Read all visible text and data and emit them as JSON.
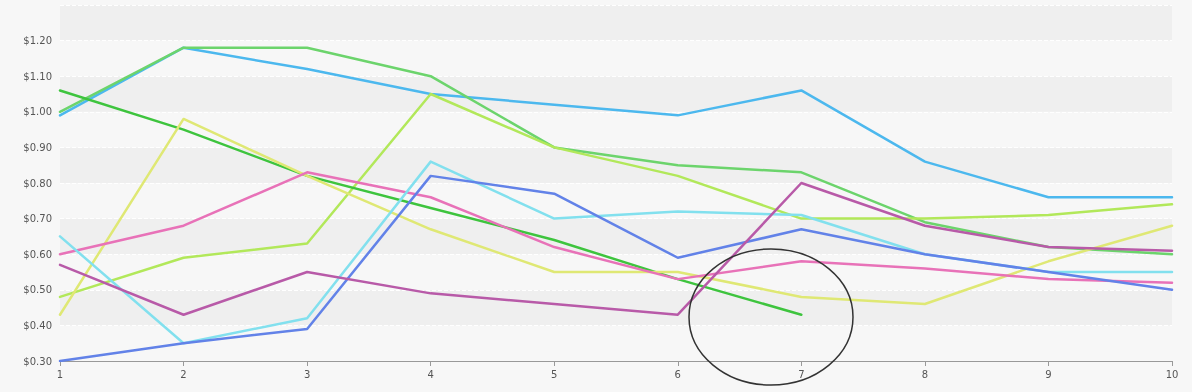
{
  "chart_data": {
    "type": "line",
    "x": [
      1,
      2,
      3,
      4,
      5,
      6,
      7,
      8,
      9,
      10
    ],
    "series": [
      {
        "color": "#4cb8ee",
        "values": [
          0.99,
          1.18,
          1.12,
          1.05,
          1.02,
          0.99,
          1.06,
          0.86,
          0.76,
          0.76
        ]
      },
      {
        "color": "#6cd46c",
        "values": [
          1.0,
          1.18,
          1.18,
          1.1,
          0.9,
          0.85,
          0.83,
          0.69,
          0.62,
          0.6
        ]
      },
      {
        "color": "#b2e85a",
        "values": [
          0.48,
          0.59,
          0.63,
          1.05,
          0.9,
          0.82,
          0.7,
          0.7,
          0.71,
          0.74
        ]
      },
      {
        "color": "#3ec43e",
        "values": [
          1.06,
          0.95,
          0.82,
          0.73,
          0.64,
          0.53,
          0.43,
          null,
          null,
          null
        ]
      },
      {
        "color": "#dfe874",
        "values": [
          0.43,
          0.98,
          0.82,
          0.67,
          0.55,
          0.55,
          0.48,
          0.46,
          0.58,
          0.68
        ]
      },
      {
        "color": "#e872b8",
        "values": [
          0.6,
          0.68,
          0.83,
          0.76,
          0.62,
          0.53,
          0.58,
          0.56,
          0.53,
          0.52
        ]
      },
      {
        "color": "#82e0ee",
        "values": [
          0.65,
          0.35,
          0.42,
          0.86,
          0.7,
          0.72,
          0.71,
          0.6,
          0.55,
          0.55
        ]
      },
      {
        "color": "#6282e8",
        "values": [
          0.3,
          0.35,
          0.39,
          0.82,
          0.77,
          0.59,
          0.67,
          0.6,
          0.55,
          0.5
        ]
      },
      {
        "color": "#b85aa8",
        "values": [
          0.57,
          0.43,
          0.55,
          0.49,
          0.46,
          0.43,
          0.8,
          0.68,
          0.62,
          0.61
        ]
      }
    ],
    "xlim": [
      1,
      10
    ],
    "xticks": [
      1,
      2,
      3,
      4,
      5,
      6,
      7,
      8,
      9,
      10
    ],
    "ylim": [
      0.3,
      1.3
    ],
    "yticks": [
      {
        "value": 0.3,
        "label": "$0.30"
      },
      {
        "value": 0.4,
        "label": "$0.40"
      },
      {
        "value": 0.5,
        "label": "$0.50"
      },
      {
        "value": 0.6,
        "label": "$0.60"
      },
      {
        "value": 0.7,
        "label": "$0.70"
      },
      {
        "value": 0.8,
        "label": "$0.80"
      },
      {
        "value": 0.9,
        "label": "$0.90"
      },
      {
        "value": 1.0,
        "label": "$1.00"
      },
      {
        "value": 1.1,
        "label": "$1.10"
      },
      {
        "value": 1.2,
        "label": "$1.20"
      },
      {
        "value": 1.3,
        "label": null
      }
    ],
    "grid": "y",
    "marker": "none",
    "line_style": "solid"
  }
}
